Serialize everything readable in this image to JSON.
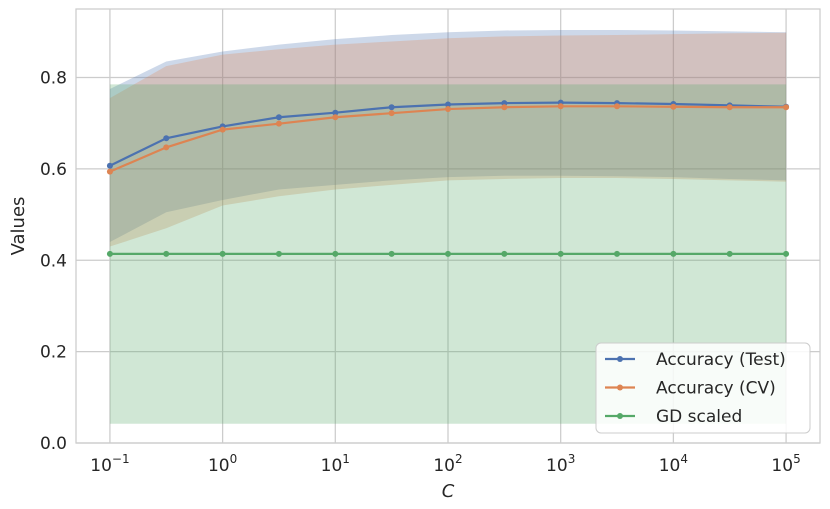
{
  "chart_data": {
    "type": "line",
    "xlabel": "C",
    "ylabel": "Values",
    "xscale": "log",
    "xlim": [
      0.05,
      200000
    ],
    "ylim": [
      0,
      0.95
    ],
    "grid": true,
    "legend_position": "bottom-right",
    "x": [
      0.1,
      0.316,
      1,
      3.16,
      10,
      31.6,
      100,
      316,
      1000,
      3160,
      10000,
      31600,
      100000
    ],
    "x_ticks": [
      {
        "value": 0.1,
        "base": "10",
        "exp": "−1"
      },
      {
        "value": 1,
        "base": "10",
        "exp": "0"
      },
      {
        "value": 10,
        "base": "10",
        "exp": "1"
      },
      {
        "value": 100,
        "base": "10",
        "exp": "2"
      },
      {
        "value": 1000,
        "base": "10",
        "exp": "3"
      },
      {
        "value": 10000,
        "base": "10",
        "exp": "4"
      },
      {
        "value": 100000,
        "base": "10",
        "exp": "5"
      }
    ],
    "y_ticks": [
      {
        "value": 0.0,
        "label": "0.0"
      },
      {
        "value": 0.2,
        "label": "0.2"
      },
      {
        "value": 0.4,
        "label": "0.4"
      },
      {
        "value": 0.6,
        "label": "0.6"
      },
      {
        "value": 0.8,
        "label": "0.8"
      }
    ],
    "series": [
      {
        "name": "Accuracy (Test)",
        "color": "#4c72b0",
        "values": [
          0.607,
          0.667,
          0.693,
          0.713,
          0.723,
          0.735,
          0.741,
          0.744,
          0.745,
          0.744,
          0.742,
          0.739,
          0.736
        ],
        "band_upper": [
          0.775,
          0.835,
          0.857,
          0.872,
          0.884,
          0.893,
          0.899,
          0.903,
          0.904,
          0.904,
          0.903,
          0.901,
          0.899
        ],
        "band_lower": [
          0.44,
          0.505,
          0.532,
          0.555,
          0.565,
          0.575,
          0.582,
          0.585,
          0.585,
          0.584,
          0.582,
          0.578,
          0.575
        ]
      },
      {
        "name": "Accuracy (CV)",
        "color": "#dd8452",
        "values": [
          0.594,
          0.647,
          0.686,
          0.699,
          0.713,
          0.722,
          0.731,
          0.735,
          0.737,
          0.737,
          0.736,
          0.735,
          0.735
        ],
        "band_upper": [
          0.755,
          0.825,
          0.85,
          0.862,
          0.872,
          0.879,
          0.886,
          0.89,
          0.892,
          0.893,
          0.895,
          0.897,
          0.898
        ],
        "band_lower": [
          0.43,
          0.47,
          0.52,
          0.54,
          0.555,
          0.565,
          0.575,
          0.578,
          0.58,
          0.58,
          0.578,
          0.575,
          0.572
        ]
      },
      {
        "name": "GD scaled",
        "color": "#55a868",
        "values": [
          0.414,
          0.414,
          0.414,
          0.414,
          0.414,
          0.414,
          0.414,
          0.414,
          0.414,
          0.414,
          0.414,
          0.414,
          0.414
        ],
        "band_upper": [
          0.785,
          0.785,
          0.785,
          0.785,
          0.785,
          0.785,
          0.785,
          0.785,
          0.785,
          0.785,
          0.785,
          0.785,
          0.785
        ],
        "band_lower": [
          0.042,
          0.042,
          0.042,
          0.042,
          0.042,
          0.042,
          0.042,
          0.042,
          0.042,
          0.042,
          0.042,
          0.042,
          0.042
        ]
      }
    ]
  }
}
